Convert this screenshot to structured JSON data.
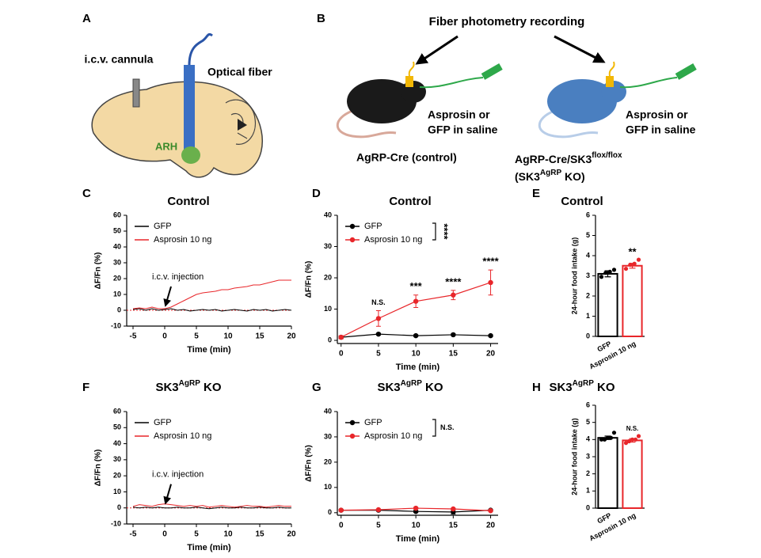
{
  "diagrams": {
    "A": {
      "label": "A",
      "cannula": "i.c.v. cannula",
      "fiber": "Optical fiber",
      "region": "ARH"
    },
    "B": {
      "label": "B",
      "title": "Fiber photometry recording",
      "injection_line1": "Asprosin or",
      "injection_line2": "GFP in saline",
      "control": "AgRP-Cre (control)",
      "ko_line1": "AgRP-Cre/SK3",
      "ko_line1_sup": "flox/flox",
      "ko_line2_open": "(SK3",
      "ko_line2_sup": "AgRP",
      "ko_line2_close": " KO)"
    }
  },
  "chart_data": [
    {
      "type": "line",
      "label": "C",
      "title": "Control",
      "xlabel": "Time (min)",
      "ylabel": "ΔF/Fn (%)",
      "x": [
        -5,
        -4,
        -3,
        -2,
        -1,
        0,
        1,
        2,
        3,
        4,
        5,
        6,
        7,
        8,
        9,
        10,
        11,
        12,
        13,
        14,
        15,
        16,
        17,
        18,
        19,
        20
      ],
      "series": [
        {
          "name": "GFP",
          "color": "#000000",
          "values": [
            0.5,
            1,
            0,
            1,
            0,
            0.5,
            1,
            0,
            0.5,
            -0.5,
            0,
            0.5,
            0,
            0.5,
            -0.5,
            0,
            0.5,
            0,
            -0.5,
            0.5,
            0,
            0.5,
            -0.5,
            0,
            0.5,
            0
          ]
        },
        {
          "name": "Asprosin 10 ng",
          "color": "#e8262a",
          "values": [
            1,
            1.5,
            1,
            2,
            1,
            1,
            2,
            4,
            6,
            8,
            10,
            11,
            11.5,
            12,
            13,
            13,
            14,
            14.5,
            15,
            16,
            16,
            17,
            18,
            19,
            19,
            19
          ]
        }
      ],
      "xlim": [
        -6,
        20
      ],
      "xticks": [
        -5,
        0,
        5,
        10,
        15,
        20
      ],
      "ylim": [
        -10,
        60
      ],
      "yticks": [
        -10,
        0,
        10,
        20,
        30,
        40,
        50,
        60
      ],
      "zero_line": true,
      "annotation": {
        "text": "i.c.v. injection",
        "x": 0
      }
    },
    {
      "type": "line",
      "label": "D",
      "title": "Control",
      "xlabel": "Time (min)",
      "ylabel": "ΔF/Fn (%)",
      "markers": true,
      "x": [
        0,
        5,
        10,
        15,
        20
      ],
      "series": [
        {
          "name": "GFP",
          "color": "#000000",
          "values": [
            1,
            2,
            1.5,
            1.8,
            1.5
          ],
          "errors": [
            0.3,
            0.3,
            0.3,
            0.3,
            0.3
          ]
        },
        {
          "name": "Asprosin 10 ng",
          "color": "#e8262a",
          "values": [
            1,
            7,
            12.5,
            14.5,
            18.5
          ],
          "errors": [
            0.5,
            2.5,
            2,
            1.5,
            4
          ]
        }
      ],
      "point_labels": [
        null,
        "N.S.",
        "***",
        "****",
        "****"
      ],
      "comparison": "****",
      "comparison_rotated": true,
      "xlim": [
        -0.5,
        21
      ],
      "xticks": [
        0,
        5,
        10,
        15,
        20
      ],
      "ylim": [
        -1,
        40
      ],
      "yticks": [
        0,
        10,
        20,
        30,
        40
      ]
    },
    {
      "type": "bar",
      "label": "E",
      "title": "Control",
      "ylabel": "24-hour food intake (g)",
      "categories": [
        "GFP",
        "Asprosin 10 ng"
      ],
      "values": [
        3.1,
        3.5
      ],
      "errors": [
        0.15,
        0.12
      ],
      "colors": [
        "#000000",
        "#e8262a"
      ],
      "points": [
        [
          2.95,
          3.15,
          3.2,
          3.3
        ],
        [
          3.35,
          3.55,
          3.6,
          3.8
        ]
      ],
      "sig_labels": [
        null,
        "**"
      ],
      "ylim": [
        0,
        6
      ],
      "yticks": [
        0,
        1,
        2,
        3,
        4,
        5,
        6
      ]
    },
    {
      "type": "line",
      "label": "F",
      "title": "SK3",
      "title_sup": "AgRP",
      "title_suffix": " KO",
      "xlabel": "Time (min)",
      "ylabel": "ΔF/Fn (%)",
      "x": [
        -5,
        -4,
        -3,
        -2,
        -1,
        0,
        1,
        2,
        3,
        4,
        5,
        6,
        7,
        8,
        9,
        10,
        11,
        12,
        13,
        14,
        15,
        16,
        17,
        18,
        19,
        20
      ],
      "series": [
        {
          "name": "GFP",
          "color": "#000000",
          "values": [
            0.5,
            0,
            0.5,
            0,
            0.5,
            0,
            0,
            0.5,
            0,
            0,
            0.5,
            0,
            -0.5,
            0,
            0.5,
            0,
            0,
            0.5,
            0,
            0,
            0.5,
            0,
            0,
            0.5,
            0,
            0
          ]
        },
        {
          "name": "Asprosin 10 ng",
          "color": "#e8262a",
          "values": [
            1,
            2,
            1.5,
            1,
            2,
            2.5,
            2,
            1.5,
            1,
            1.5,
            1,
            1.5,
            0.5,
            1,
            1.5,
            1,
            0.5,
            1,
            1.5,
            1,
            1,
            0.5,
            1,
            1.5,
            1,
            1
          ]
        }
      ],
      "xlim": [
        -6,
        20
      ],
      "xticks": [
        -5,
        0,
        5,
        10,
        15,
        20
      ],
      "ylim": [
        -10,
        60
      ],
      "yticks": [
        -10,
        0,
        10,
        20,
        30,
        40,
        50,
        60
      ],
      "zero_line": true,
      "annotation": {
        "text": "i.c.v. injection",
        "x": 0
      }
    },
    {
      "type": "line",
      "label": "G",
      "title": "SK3",
      "title_sup": "AgRP",
      "title_suffix": " KO",
      "xlabel": "Time (min)",
      "ylabel": "ΔF/Fn (%)",
      "markers": true,
      "x": [
        0,
        5,
        10,
        15,
        20
      ],
      "series": [
        {
          "name": "GFP",
          "color": "#000000",
          "values": [
            1,
            1,
            0.5,
            0.3,
            1
          ],
          "errors": [
            0.3,
            0.3,
            0.4,
            0.8,
            0.3
          ]
        },
        {
          "name": "Asprosin 10 ng",
          "color": "#e8262a",
          "values": [
            1,
            1.2,
            1.8,
            1.5,
            0.8
          ],
          "errors": [
            0.3,
            0.3,
            0.3,
            0.3,
            0.3
          ]
        }
      ],
      "comparison": "N.S.",
      "comparison_rotated": false,
      "xlim": [
        -0.5,
        21
      ],
      "xticks": [
        0,
        5,
        10,
        15,
        20
      ],
      "ylim": [
        -1,
        40
      ],
      "yticks": [
        0,
        10,
        20,
        30,
        40
      ]
    },
    {
      "type": "bar",
      "label": "H",
      "title": "SK3",
      "title_sup": "AgRP",
      "title_suffix": " KO",
      "ylabel": "24-hour food intake (g)",
      "categories": [
        "GFP",
        "Asprosin 10 ng"
      ],
      "values": [
        4.1,
        3.95
      ],
      "errors": [
        0.1,
        0.1
      ],
      "colors": [
        "#000000",
        "#e8262a"
      ],
      "points": [
        [
          4.0,
          4.0,
          4.1,
          4.1,
          4.4
        ],
        [
          3.8,
          3.9,
          4.0,
          4.0,
          4.2
        ]
      ],
      "sig_labels": [
        null,
        "N.S."
      ],
      "ylim": [
        0,
        6
      ],
      "yticks": [
        0,
        1,
        2,
        3,
        4,
        5,
        6
      ]
    }
  ]
}
